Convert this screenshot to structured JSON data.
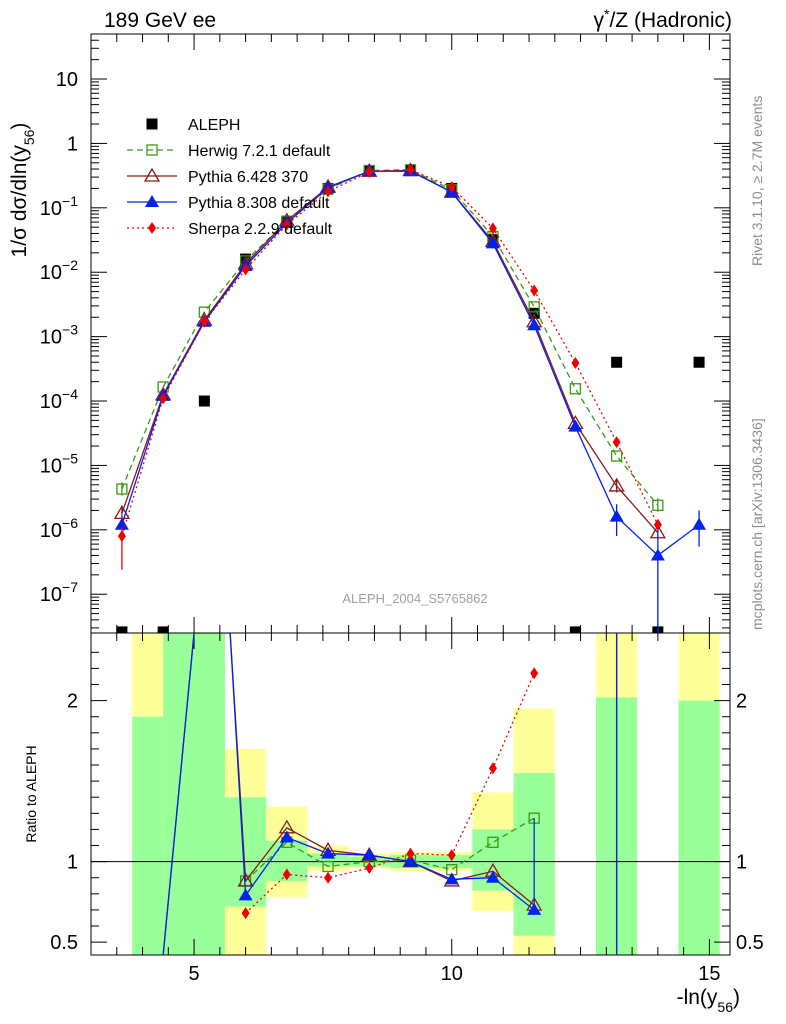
{
  "header": {
    "left_title": "189 GeV ee",
    "right_title_html_parts": [
      "γ",
      "*",
      "/Z (Hadronic)"
    ]
  },
  "side_labels": {
    "rivet": "Rivet 3.1.10, ≥ 2.7M events",
    "mcplots": "mcplots.cern.ch [arXiv:1306.3436]"
  },
  "watermark": "ALEPH_2004_S5765862",
  "chart_data": [
    {
      "type": "scatter",
      "panel": "main",
      "ylabel": "1/σ  dσ/dln(y56)",
      "yscale": "log",
      "xlim": [
        3.0,
        15.4
      ],
      "ylim": [
        2.5e-08,
        50
      ],
      "yticks": [
        1e-07,
        1e-06,
        1e-05,
        0.0001,
        0.001,
        0.01,
        0.1,
        1,
        10
      ],
      "ytick_labels": [
        "10^-7",
        "10^-6",
        "10^-5",
        "10^-4",
        "10^-3",
        "10^-2",
        "10^-1",
        "1",
        "10"
      ],
      "legend_position": "top-left",
      "series": [
        {
          "name": "ALEPH",
          "color": "#000000",
          "marker": "square-filled",
          "line": "none",
          "points": [
            [
              3.6,
              2.6e-08
            ],
            [
              4.4,
              2.6e-08
            ],
            [
              5.2,
              0.0001
            ],
            [
              6.0,
              0.016
            ],
            [
              6.8,
              0.06
            ],
            [
              7.6,
              0.2
            ],
            [
              8.4,
              0.38
            ],
            [
              9.2,
              0.38
            ],
            [
              10.0,
              0.2
            ],
            [
              10.8,
              0.032
            ],
            [
              11.6,
              0.0023
            ],
            [
              12.4,
              2.6e-08
            ],
            [
              13.2,
              0.0004
            ],
            [
              14.0,
              2.6e-08
            ],
            [
              14.8,
              0.0004
            ]
          ]
        },
        {
          "name": "Herwig 7.2.1 default",
          "color": "#3a9a16",
          "marker": "square-open",
          "line": "dashed",
          "points": [
            [
              3.6,
              4.3e-06
            ],
            [
              4.4,
              0.000165
            ],
            [
              5.2,
              0.0024
            ],
            [
              6.0,
              0.015
            ],
            [
              6.8,
              0.062
            ],
            [
              7.6,
              0.195
            ],
            [
              8.4,
              0.38
            ],
            [
              9.2,
              0.39
            ],
            [
              10.0,
              0.19
            ],
            [
              10.8,
              0.036
            ],
            [
              11.6,
              0.0029
            ],
            [
              12.4,
              0.000155
            ],
            [
              13.2,
              1.4e-05
            ],
            [
              14.0,
              2.4e-06
            ]
          ],
          "errors": [
            [
              3.6,
              3.4e-06,
              5.5e-06
            ],
            [
              14.0,
              1.9e-06,
              3.1e-06
            ]
          ]
        },
        {
          "name": "Pythia 6.428 370",
          "color": "#8b1a1a",
          "marker": "triangle-open",
          "line": "solid",
          "points": [
            [
              3.6,
              1.8e-06
            ],
            [
              4.4,
              0.000125
            ],
            [
              5.2,
              0.0018
            ],
            [
              6.0,
              0.0135
            ],
            [
              6.8,
              0.063
            ],
            [
              7.6,
              0.21
            ],
            [
              8.4,
              0.37
            ],
            [
              9.2,
              0.38
            ],
            [
              10.0,
              0.175
            ],
            [
              10.8,
              0.03
            ],
            [
              11.6,
              0.0017
            ],
            [
              12.4,
              4.5e-05
            ],
            [
              13.2,
              4.8e-06
            ],
            [
              14.0,
              9e-07
            ]
          ],
          "errors": [
            [
              3.6,
              1.3e-06,
              2.4e-06
            ],
            [
              13.2,
              3.8e-06,
              6e-06
            ]
          ]
        },
        {
          "name": "Pythia 8.308 default",
          "color": "#0022ee",
          "marker": "triangle-filled",
          "line": "solid",
          "points": [
            [
              3.6,
              1.2e-06
            ],
            [
              4.4,
              0.00012
            ],
            [
              5.2,
              0.0017
            ],
            [
              6.0,
              0.0125
            ],
            [
              6.8,
              0.058
            ],
            [
              7.6,
              0.205
            ],
            [
              8.4,
              0.37
            ],
            [
              9.2,
              0.37
            ],
            [
              10.0,
              0.175
            ],
            [
              10.8,
              0.028
            ],
            [
              11.6,
              0.0015
            ],
            [
              12.4,
              4e-05
            ],
            [
              13.2,
              1.6e-06
            ],
            [
              14.0,
              4e-07
            ],
            [
              14.8,
              1.2e-06
            ]
          ],
          "errors": [
            [
              13.2,
              8e-07,
              2.5e-06
            ],
            [
              14.0,
              2.5e-08,
              1e-06
            ],
            [
              14.8,
              5.5e-07,
              2e-06
            ]
          ]
        },
        {
          "name": "Sherpa 2.2.9 default",
          "color": "#ee0000",
          "marker": "diamond-filled",
          "line": "dotted",
          "points": [
            [
              3.6,
              8e-07
            ],
            [
              4.4,
              0.00011
            ],
            [
              5.2,
              0.0017
            ],
            [
              6.0,
              0.011
            ],
            [
              6.8,
              0.055
            ],
            [
              7.6,
              0.18
            ],
            [
              8.4,
              0.36
            ],
            [
              9.2,
              0.39
            ],
            [
              10.0,
              0.21
            ],
            [
              10.8,
              0.048
            ],
            [
              11.6,
              0.0052
            ],
            [
              12.4,
              0.00039
            ],
            [
              13.2,
              2.3e-05
            ],
            [
              14.0,
              1.2e-06
            ]
          ],
          "errors": [
            [
              3.6,
              2.4e-07,
              1.1e-06
            ]
          ]
        }
      ]
    },
    {
      "type": "line",
      "panel": "ratio",
      "ylabel": "Ratio to ALEPH",
      "xlabel": "-ln(y56)",
      "xlim": [
        3.0,
        15.4
      ],
      "ylim": [
        0.42,
        2.42
      ],
      "xticks": [
        5,
        10,
        15
      ],
      "xtick_labels": [
        "5",
        "10",
        "15"
      ],
      "yticks": [
        0.5,
        1,
        2
      ],
      "ytick_labels": [
        "0.5",
        "1",
        "2"
      ],
      "reference": 1.0,
      "uncertainty_bands": [
        {
          "xmin": 3.8,
          "xmax": 4.4,
          "stat": [
            0.42,
            1.9
          ],
          "total": [
            0.42,
            2.42
          ]
        },
        {
          "xmin": 4.4,
          "xmax": 5.6,
          "stat": [
            0.42,
            2.42
          ],
          "total": [
            0.42,
            2.42
          ]
        },
        {
          "xmin": 5.6,
          "xmax": 6.4,
          "stat": [
            0.72,
            1.4
          ],
          "total": [
            0.42,
            1.7
          ]
        },
        {
          "xmin": 6.4,
          "xmax": 7.2,
          "stat": [
            0.88,
            1.13
          ],
          "total": [
            0.78,
            1.34
          ]
        },
        {
          "xmin": 7.2,
          "xmax": 8.0,
          "stat": [
            0.97,
            1.05
          ],
          "total": [
            0.94,
            1.1
          ]
        },
        {
          "xmin": 8.0,
          "xmax": 8.8,
          "stat": [
            0.97,
            1.03
          ],
          "total": [
            0.96,
            1.05
          ]
        },
        {
          "xmin": 8.8,
          "xmax": 9.6,
          "stat": [
            0.96,
            1.04
          ],
          "total": [
            0.94,
            1.06
          ]
        },
        {
          "xmin": 9.6,
          "xmax": 10.4,
          "stat": [
            0.96,
            1.04
          ],
          "total": [
            0.94,
            1.06
          ]
        },
        {
          "xmin": 10.4,
          "xmax": 11.2,
          "stat": [
            0.82,
            1.2
          ],
          "total": [
            0.69,
            1.43
          ]
        },
        {
          "xmin": 11.2,
          "xmax": 12.0,
          "stat": [
            0.54,
            1.55
          ],
          "total": [
            0.42,
            1.95
          ]
        },
        {
          "xmin": 12.8,
          "xmax": 13.6,
          "stat": [
            0.42,
            2.02
          ],
          "total": [
            0.42,
            2.42
          ]
        },
        {
          "xmin": 14.4,
          "xmax": 15.2,
          "stat": [
            0.42,
            2.0
          ],
          "total": [
            0.42,
            2.42
          ]
        }
      ],
      "series": [
        {
          "name": "Herwig 7.2.1 default",
          "color": "#3a9a16",
          "marker": "square-open",
          "line": "dashed",
          "points": [
            [
              6.0,
              0.88
            ],
            [
              6.8,
              1.12
            ],
            [
              7.6,
              0.97
            ],
            [
              8.4,
              1.0
            ],
            [
              9.2,
              1.01
            ],
            [
              10.0,
              0.95
            ],
            [
              10.8,
              1.12
            ],
            [
              11.6,
              1.27
            ]
          ]
        },
        {
          "name": "Pythia 6.428 370",
          "color": "#8b1a1a",
          "marker": "triangle-open",
          "line": "solid",
          "points": [
            [
              4.4,
              0.42
            ],
            [
              5.0,
              2.42
            ],
            [
              5.7,
              2.42
            ],
            [
              6.0,
              0.88
            ],
            [
              6.8,
              1.21
            ],
            [
              7.6,
              1.07
            ],
            [
              8.4,
              1.04
            ],
            [
              9.2,
              1.0
            ],
            [
              10.0,
              0.88
            ],
            [
              10.8,
              0.94
            ],
            [
              11.6,
              0.73
            ]
          ],
          "vertical_lines": [
            [
              13.2,
              0.42,
              2.42
            ]
          ]
        },
        {
          "name": "Pythia 8.308 default",
          "color": "#0022ee",
          "marker": "triangle-filled",
          "line": "solid",
          "points": [
            [
              4.4,
              0.42
            ],
            [
              5.0,
              2.42
            ],
            [
              5.7,
              2.42
            ],
            [
              6.0,
              0.79
            ],
            [
              6.8,
              1.15
            ],
            [
              7.6,
              1.05
            ],
            [
              8.4,
              1.04
            ],
            [
              9.2,
              1.0
            ],
            [
              10.0,
              0.89
            ],
            [
              10.8,
              0.9
            ],
            [
              11.6,
              0.7
            ]
          ],
          "vertical_lines": [
            [
              11.6,
              0.7,
              1.27
            ],
            [
              13.2,
              0.42,
              2.42
            ]
          ]
        },
        {
          "name": "Sherpa 2.2.9 default",
          "color": "#ee0000",
          "marker": "diamond-filled",
          "line": "dotted",
          "points": [
            [
              6.0,
              0.68
            ],
            [
              6.8,
              0.92
            ],
            [
              7.6,
              0.9
            ],
            [
              8.4,
              0.96
            ],
            [
              9.2,
              1.05
            ],
            [
              10.0,
              1.04
            ],
            [
              10.8,
              1.58
            ],
            [
              11.6,
              2.17
            ]
          ]
        }
      ]
    }
  ]
}
